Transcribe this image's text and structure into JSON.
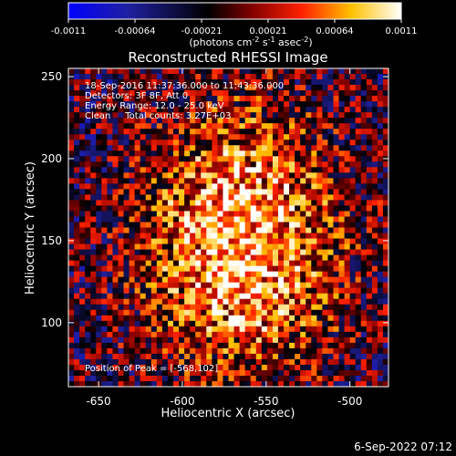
{
  "colorbar": {
    "ticks": [
      "-0.0011",
      "-0.00064",
      "-0.00021",
      "0.00021",
      "0.00064",
      "0.0011"
    ],
    "units_main": "(photons cm",
    "units_exp1": "-2",
    "units_mid": " s",
    "units_exp2": "-1",
    "units_tail": " asec",
    "units_exp3": "-2",
    "units_close": ")",
    "colors": [
      "#0000ff",
      "#000000",
      "#ff0000",
      "#ffff00",
      "#ffffff"
    ]
  },
  "chart_data": {
    "type": "heatmap",
    "title": "Reconstructed RHESSI Image",
    "xlabel": "Heliocentric X (arcsec)",
    "ylabel": "Heliocentric Y (arcsec)",
    "xlim": [
      -668,
      -477
    ],
    "ylim": [
      61,
      255
    ],
    "x_ticks": [
      -650,
      -600,
      -550,
      -500
    ],
    "y_ticks": [
      100,
      150,
      200,
      250
    ],
    "value_range": [
      -0.0011,
      0.0011
    ],
    "peak": [
      -568,
      102
    ],
    "annotations": [
      "18-Sep-2016 11:37:36.000 to 11:43:36.000",
      "Detectors: 3F 8F, Att 0",
      "Energy Range: 12.0 - 25.0 keV",
      "Clean     Total counts: 3.27E+03",
      "Position of Peak = [-568,102]"
    ]
  },
  "footer": {
    "timestamp": "6-Sep-2022 07:12"
  }
}
